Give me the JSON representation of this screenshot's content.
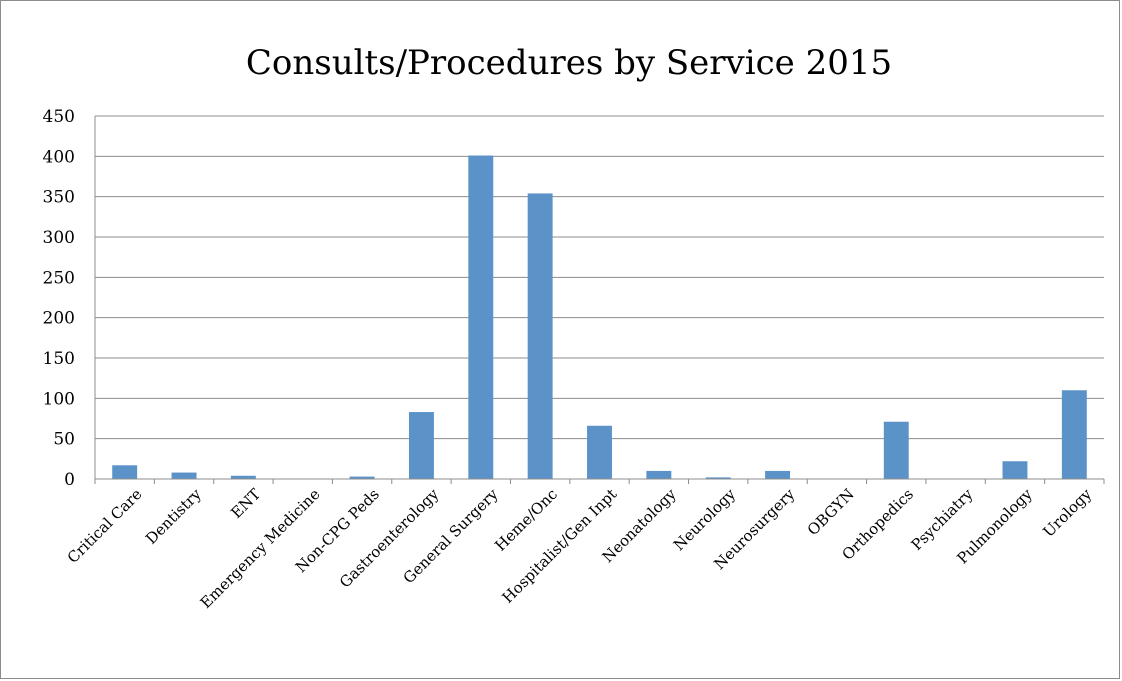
{
  "chart_data": {
    "type": "bar",
    "title": "Consults/Procedures by Service 2015",
    "xlabel": "",
    "ylabel": "",
    "ylim": [
      0,
      450
    ],
    "yticks": [
      0,
      50,
      100,
      150,
      200,
      250,
      300,
      350,
      400,
      450
    ],
    "grid": "horizontal",
    "legend": "none",
    "bar_color": "#5b93c9",
    "categories": [
      "Critical Care",
      "Dentistry",
      "ENT",
      "Emergency Medicine",
      "Non-CPG Peds",
      "Gastroenterology",
      "General Surgery",
      "Heme/Onc",
      "Hospitalist/Gen Inpt",
      "Neonatology",
      "Neurology",
      "Neurosurgery",
      "OBGYN",
      "Orthopedics",
      "Psychiatry",
      "Pulmonology",
      "Urology"
    ],
    "values": [
      17,
      8,
      4,
      0,
      3,
      83,
      401,
      354,
      66,
      10,
      2,
      10,
      0,
      71,
      0,
      22,
      110
    ]
  }
}
